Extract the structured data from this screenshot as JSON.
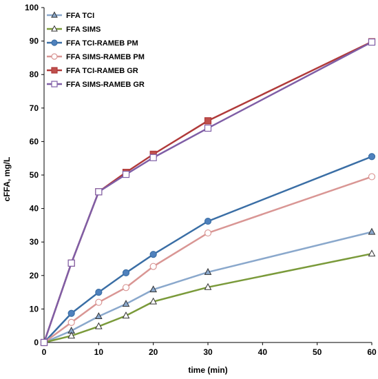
{
  "chart_data": {
    "type": "line",
    "xlabel": "time (min)",
    "ylabel": "cFFA, mg/L",
    "xlim": [
      0,
      60
    ],
    "ylim": [
      0,
      100
    ],
    "xticks": [
      0,
      10,
      20,
      30,
      40,
      50,
      60
    ],
    "yticks": [
      0,
      10,
      20,
      30,
      40,
      50,
      60,
      70,
      80,
      90,
      100
    ],
    "grid": false,
    "legend_position": "top-left",
    "x": [
      0,
      5,
      10,
      15,
      20,
      30,
      60
    ],
    "series": [
      {
        "name": "FFA TCI",
        "values": [
          0,
          3.5,
          7.8,
          11.5,
          15.8,
          21,
          33
        ],
        "color": "#8aa8cc",
        "marker": "triangle",
        "marker_fill": "#8aa8cc"
      },
      {
        "name": "FFA SIMS",
        "values": [
          0,
          2,
          4.8,
          8,
          12.2,
          16.5,
          26.5
        ],
        "color": "#7a9a3a",
        "marker": "triangle",
        "marker_fill": "#ffffff"
      },
      {
        "name": "FFA TCI-RAMEB PM",
        "values": [
          0,
          8.7,
          15,
          20.8,
          26.3,
          36.2,
          55.5
        ],
        "color": "#3a6ea5",
        "marker": "circle",
        "marker_fill": "#4f81bd"
      },
      {
        "name": "FFA SIMS-RAMEB PM",
        "values": [
          0,
          6,
          12,
          16.4,
          22.7,
          32.7,
          49.5
        ],
        "color": "#d99694",
        "marker": "circle",
        "marker_fill": "#ffffff"
      },
      {
        "name": "FFA TCI-RAMEB GR",
        "values": [
          0,
          23.7,
          45,
          50.8,
          56.2,
          66.2,
          89.8
        ],
        "color": "#b03a3a",
        "marker": "square",
        "marker_fill": "#c0504d"
      },
      {
        "name": "FFA SIMS-RAMEB GR",
        "values": [
          0,
          23.7,
          45,
          50.2,
          55.2,
          64,
          89.7
        ],
        "color": "#7f5ea6",
        "marker": "square",
        "marker_fill": "#ffffff"
      }
    ]
  }
}
